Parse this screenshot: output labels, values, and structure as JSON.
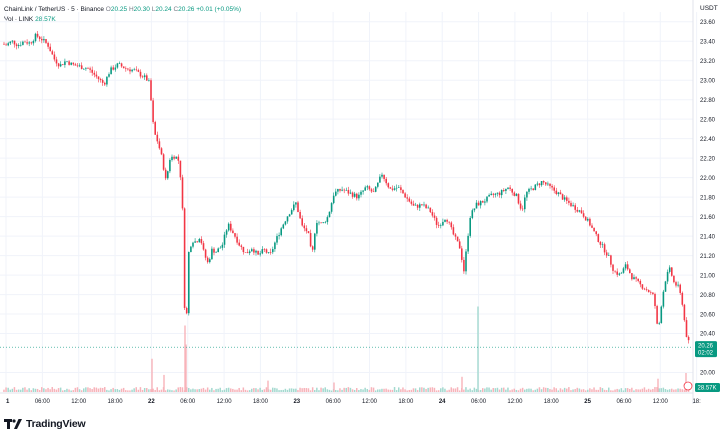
{
  "legend": {
    "symbol": "ChainLink / TetherUS · 5 · Binance",
    "o_label": "O",
    "o": "20.25",
    "h_label": "H",
    "h": "20.30",
    "l_label": "L",
    "l": "20.24",
    "c_label": "C",
    "c": "20.26",
    "change": "+0.01 (+0.05%)",
    "vol_label": "Vol · LINK",
    "vol_value": "28.57K"
  },
  "currency": "USDT",
  "brand": "TradingView",
  "price_tag": {
    "price": "20.26",
    "countdown": "02:02"
  },
  "vol_tag": "28.57K",
  "colors": {
    "up": "#089981",
    "down": "#f23645",
    "up_vol": "#a3d9cf",
    "down_vol": "#f7b3ba",
    "grid": "#f0f3fa"
  },
  "chart_data": {
    "type": "candlestick",
    "title": "ChainLink / TetherUS · 5 · Binance",
    "y_ticks": [
      "23.60",
      "23.40",
      "23.20",
      "23.00",
      "22.80",
      "22.60",
      "22.40",
      "22.20",
      "22.00",
      "21.80",
      "21.60",
      "21.40",
      "21.20",
      "21.00",
      "20.80",
      "20.60",
      "20.40",
      "20.00"
    ],
    "x_ticks": [
      "1",
      "06:00",
      "12:00",
      "18:00",
      "22",
      "06:00",
      "12:00",
      "18:00",
      "23",
      "06:00",
      "12:00",
      "18:00",
      "24",
      "06:00",
      "12:00",
      "18:00",
      "25",
      "06:00",
      "12:00",
      "18:"
    ],
    "ylim": [
      19.8,
      23.7
    ],
    "path": [
      [
        0,
        23.38
      ],
      [
        6,
        23.36
      ],
      [
        12,
        23.4
      ],
      [
        18,
        23.36
      ],
      [
        24,
        23.4
      ],
      [
        30,
        23.38
      ],
      [
        36,
        23.46
      ],
      [
        42,
        23.42
      ],
      [
        48,
        23.36
      ],
      [
        54,
        23.22
      ],
      [
        60,
        23.15
      ],
      [
        66,
        23.2
      ],
      [
        72,
        23.16
      ],
      [
        80,
        23.14
      ],
      [
        88,
        23.12
      ],
      [
        96,
        23.04
      ],
      [
        104,
        22.96
      ],
      [
        110,
        23.1
      ],
      [
        118,
        23.16
      ],
      [
        126,
        23.12
      ],
      [
        134,
        23.1
      ],
      [
        140,
        23.06
      ],
      [
        146,
        23.02
      ],
      [
        150,
        22.96
      ],
      [
        152,
        22.62
      ],
      [
        155,
        22.44
      ],
      [
        158,
        22.36
      ],
      [
        162,
        22.2
      ],
      [
        166,
        21.96
      ],
      [
        170,
        22.2
      ],
      [
        174,
        22.22
      ],
      [
        178,
        22.2
      ],
      [
        182,
        21.9
      ],
      [
        185,
        20.5
      ],
      [
        186,
        20.28
      ],
      [
        188,
        21.2
      ],
      [
        192,
        21.36
      ],
      [
        196,
        21.34
      ],
      [
        200,
        21.4
      ],
      [
        204,
        21.22
      ],
      [
        208,
        21.12
      ],
      [
        212,
        21.26
      ],
      [
        216,
        21.24
      ],
      [
        222,
        21.3
      ],
      [
        228,
        21.52
      ],
      [
        234,
        21.42
      ],
      [
        240,
        21.3
      ],
      [
        246,
        21.22
      ],
      [
        252,
        21.28
      ],
      [
        258,
        21.2
      ],
      [
        264,
        21.26
      ],
      [
        270,
        21.2
      ],
      [
        276,
        21.36
      ],
      [
        282,
        21.5
      ],
      [
        288,
        21.62
      ],
      [
        296,
        21.74
      ],
      [
        302,
        21.5
      ],
      [
        308,
        21.44
      ],
      [
        312,
        21.18
      ],
      [
        316,
        21.56
      ],
      [
        322,
        21.52
      ],
      [
        328,
        21.6
      ],
      [
        334,
        21.84
      ],
      [
        342,
        21.88
      ],
      [
        350,
        21.84
      ],
      [
        358,
        21.8
      ],
      [
        366,
        21.9
      ],
      [
        374,
        21.84
      ],
      [
        382,
        22.04
      ],
      [
        390,
        21.88
      ],
      [
        398,
        21.9
      ],
      [
        406,
        21.8
      ],
      [
        414,
        21.7
      ],
      [
        422,
        21.72
      ],
      [
        430,
        21.66
      ],
      [
        438,
        21.5
      ],
      [
        446,
        21.6
      ],
      [
        454,
        21.4
      ],
      [
        460,
        21.28
      ],
      [
        464,
        21.04
      ],
      [
        470,
        21.6
      ],
      [
        476,
        21.72
      ],
      [
        484,
        21.76
      ],
      [
        492,
        21.82
      ],
      [
        500,
        21.84
      ],
      [
        508,
        21.9
      ],
      [
        516,
        21.82
      ],
      [
        522,
        21.66
      ],
      [
        526,
        21.84
      ],
      [
        534,
        21.9
      ],
      [
        542,
        21.96
      ],
      [
        550,
        21.9
      ],
      [
        558,
        21.84
      ],
      [
        566,
        21.76
      ],
      [
        574,
        21.7
      ],
      [
        582,
        21.64
      ],
      [
        590,
        21.52
      ],
      [
        596,
        21.4
      ],
      [
        602,
        21.3
      ],
      [
        608,
        21.2
      ],
      [
        614,
        21.04
      ],
      [
        620,
        21.0
      ],
      [
        626,
        21.1
      ],
      [
        632,
        20.98
      ],
      [
        640,
        20.9
      ],
      [
        648,
        20.84
      ],
      [
        654,
        20.78
      ],
      [
        658,
        20.4
      ],
      [
        662,
        20.76
      ],
      [
        666,
        20.98
      ],
      [
        670,
        21.06
      ],
      [
        674,
        20.92
      ],
      [
        678,
        20.88
      ],
      [
        682,
        20.74
      ],
      [
        686,
        20.4
      ],
      [
        690,
        20.26
      ]
    ],
    "volume_spikes": [
      [
        152,
        3.5
      ],
      [
        164,
        1.8
      ],
      [
        185,
        7.0
      ],
      [
        186,
        5.0
      ],
      [
        268,
        1.2
      ],
      [
        334,
        1.0
      ],
      [
        462,
        1.6
      ],
      [
        478,
        9.0
      ],
      [
        658,
        1.4
      ],
      [
        686,
        2.0
      ]
    ],
    "last_price": 20.26,
    "last_volume": "28.57K"
  }
}
